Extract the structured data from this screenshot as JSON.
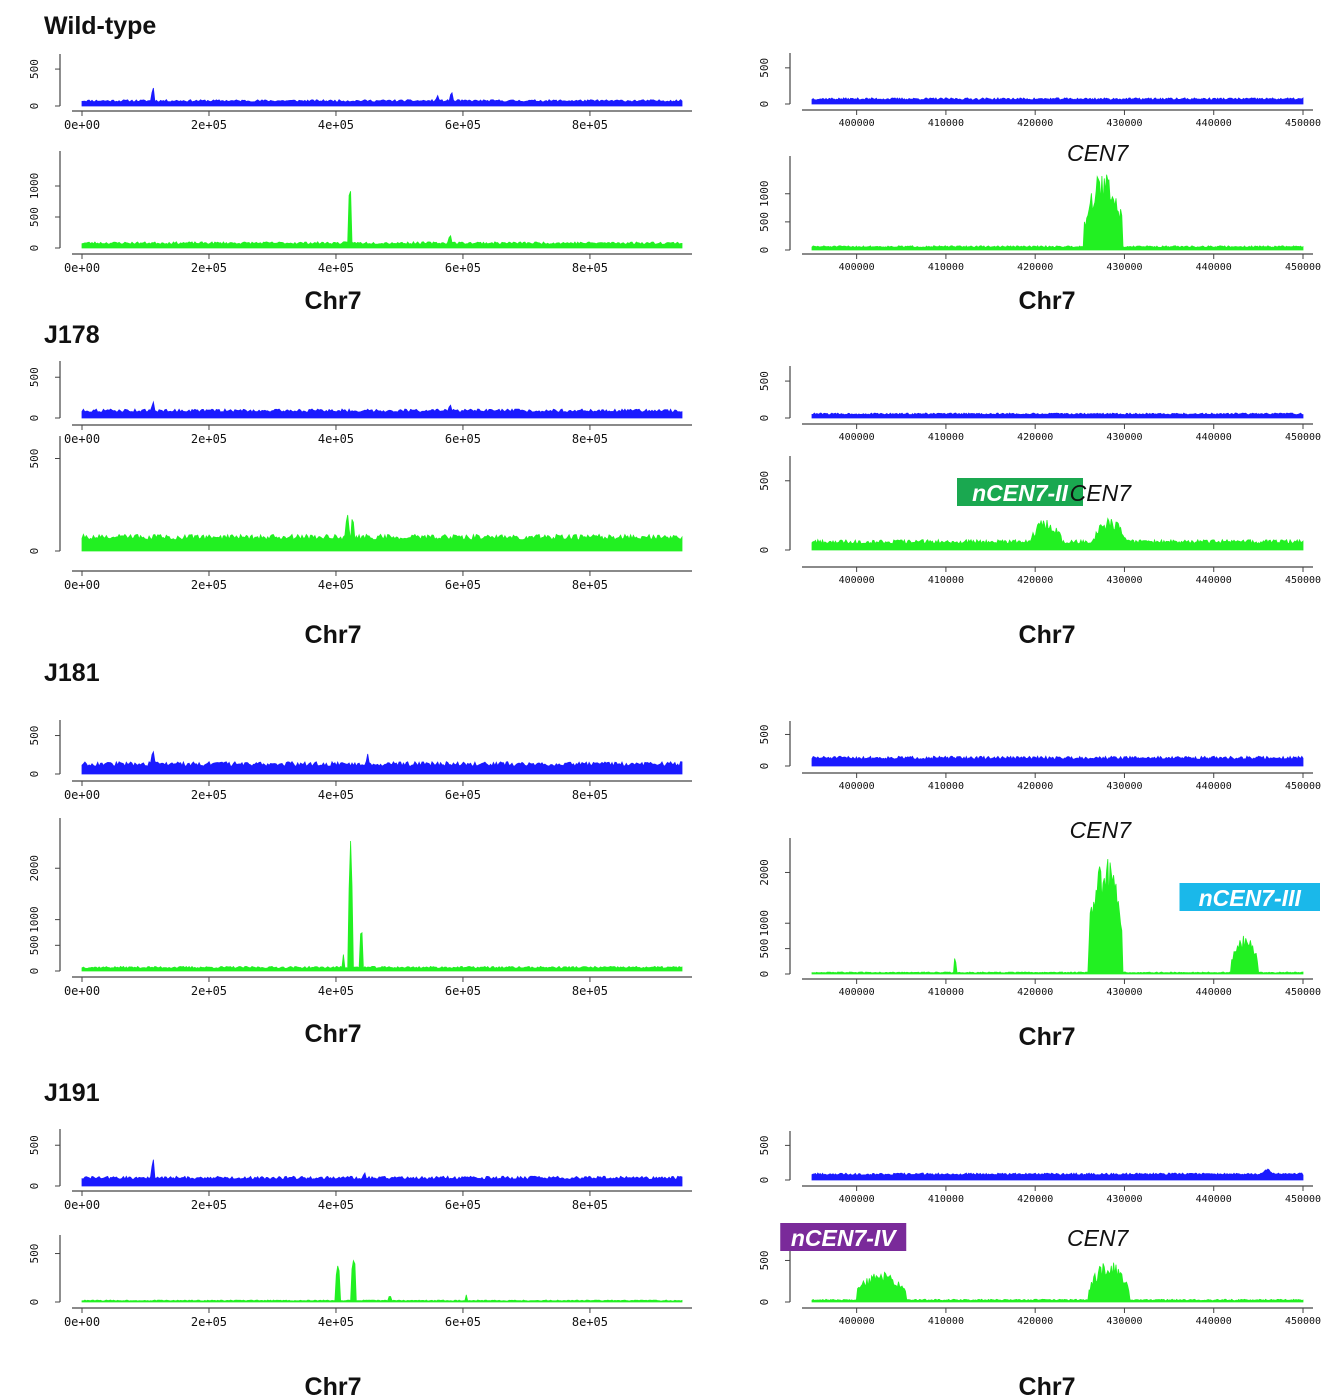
{
  "figure": {
    "colors": {
      "input": "#1a1aff",
      "chip": "#22f022",
      "axis": "#444444",
      "text": "#111111"
    }
  },
  "chart_data": [
    {
      "strain": "Wild-type",
      "xlabel_left": "Chr7",
      "xlabel_right": "Chr7",
      "full": {
        "x_ticks": [
          "0e+00",
          "2e+05",
          "4e+05",
          "6e+05",
          "8e+05"
        ],
        "top": {
          "type": "area",
          "color": "#1a1aff",
          "ylim": [
            0,
            650
          ],
          "y_ticks": [
            "0",
            "500"
          ],
          "baseline": 70,
          "noise": 15,
          "peaks": [
            {
              "x": 112000,
              "y": 290
            },
            {
              "x": 560000,
              "y": 170
            },
            {
              "x": 582000,
              "y": 220
            }
          ]
        },
        "bottom": {
          "type": "area",
          "color": "#22f022",
          "ylim": [
            0,
            1500
          ],
          "y_ticks": [
            "0",
            "500",
            "1000"
          ],
          "baseline": 80,
          "noise": 20,
          "peaks": [
            {
              "x": 422000,
              "y": 1450,
              "w": 1500
            },
            {
              "x": 580000,
              "y": 250
            }
          ]
        }
      },
      "zoom": {
        "x_ticks": [
          "400000",
          "410000",
          "420000",
          "430000",
          "440000",
          "450000"
        ],
        "top": {
          "type": "area",
          "color": "#1a1aff",
          "ylim": [
            0,
            650
          ],
          "y_ticks": [
            "0",
            "500"
          ],
          "baseline": 70,
          "noise": 15,
          "peaks": []
        },
        "bottom": {
          "type": "area",
          "color": "#22f022",
          "ylim": [
            0,
            1600
          ],
          "y_ticks": [
            "0",
            "500",
            "1000"
          ],
          "baseline": 60,
          "noise": 15,
          "regions": [
            {
              "from": 425500,
              "to": 429800,
              "y": 1400
            }
          ]
        },
        "labels": [
          {
            "text": "CEN7",
            "x": 427000
          }
        ]
      }
    },
    {
      "strain": "J178",
      "xlabel_left": "Chr7",
      "xlabel_right": "Chr7",
      "full": {
        "x_ticks": [
          "0e+00",
          "2e+05",
          "4e+05",
          "6e+05",
          "8e+05"
        ],
        "top": {
          "type": "area",
          "color": "#1a1aff",
          "ylim": [
            0,
            650
          ],
          "y_ticks": [
            "0",
            "500"
          ],
          "baseline": 90,
          "noise": 20,
          "peaks": [
            {
              "x": 112000,
              "y": 220
            },
            {
              "x": 580000,
              "y": 190
            }
          ]
        },
        "bottom": {
          "type": "area",
          "color": "#22f022",
          "ylim": [
            0,
            600
          ],
          "y_ticks": [
            "0",
            "500"
          ],
          "baseline": 75,
          "noise": 15,
          "peaks": [
            {
              "x": 418000,
              "y": 220,
              "w": 3000
            },
            {
              "x": 426000,
              "y": 220,
              "w": 3000
            }
          ]
        }
      },
      "zoom": {
        "x_ticks": [
          "400000",
          "410000",
          "420000",
          "430000",
          "440000",
          "450000"
        ],
        "top": {
          "type": "area",
          "color": "#1a1aff",
          "ylim": [
            0,
            650
          ],
          "y_ticks": [
            "0",
            "500"
          ],
          "baseline": 55,
          "noise": 12,
          "peaks": []
        },
        "bottom": {
          "type": "area",
          "color": "#22f022",
          "ylim": [
            0,
            650
          ],
          "y_ticks": [
            "0",
            "500"
          ],
          "baseline": 60,
          "noise": 15,
          "regions": [
            {
              "from": 419500,
              "to": 423000,
              "y": 230
            },
            {
              "from": 426500,
              "to": 430200,
              "y": 230
            }
          ]
        },
        "labels": [
          {
            "text": "nCEN7-II",
            "x": 418300,
            "badge": "#1aa850"
          },
          {
            "text": "CEN7",
            "x": 427300
          }
        ]
      }
    },
    {
      "strain": "J181",
      "xlabel_left": "Chr7",
      "xlabel_right": "Chr7",
      "full": {
        "x_ticks": [
          "0e+00",
          "2e+05",
          "4e+05",
          "6e+05",
          "8e+05"
        ],
        "top": {
          "type": "area",
          "color": "#1a1aff",
          "ylim": [
            0,
            650
          ],
          "y_ticks": [
            "0",
            "500"
          ],
          "baseline": 130,
          "noise": 30,
          "peaks": [
            {
              "x": 112000,
              "y": 360
            },
            {
              "x": 450000,
              "y": 280
            }
          ]
        },
        "bottom": {
          "type": "area",
          "color": "#22f022",
          "ylim": [
            0,
            2900
          ],
          "y_ticks": [
            "0",
            "500",
            "1000",
            "2000"
          ],
          "baseline": 70,
          "noise": 20,
          "peaks": [
            {
              "x": 411000,
              "y": 450,
              "w": 1200
            },
            {
              "x": 423000,
              "y": 2850,
              "w": 2500
            },
            {
              "x": 440000,
              "y": 950,
              "w": 2500
            }
          ]
        }
      },
      "zoom": {
        "x_ticks": [
          "400000",
          "410000",
          "420000",
          "430000",
          "440000",
          "450000"
        ],
        "top": {
          "type": "area",
          "color": "#1a1aff",
          "ylim": [
            0,
            650
          ],
          "y_ticks": [
            "0",
            "500"
          ],
          "baseline": 130,
          "noise": 25,
          "peaks": []
        },
        "bottom": {
          "type": "area",
          "color": "#22f022",
          "ylim": [
            0,
            2600
          ],
          "y_ticks": [
            "0",
            "500",
            "1000",
            "2000"
          ],
          "baseline": 30,
          "noise": 10,
          "peaks": [
            {
              "x": 411000,
              "y": 350,
              "w": 150
            }
          ],
          "regions": [
            {
              "from": 426000,
              "to": 429800,
              "y": 2400
            },
            {
              "from": 442000,
              "to": 445000,
              "y": 800
            }
          ]
        },
        "labels": [
          {
            "text": "CEN7",
            "x": 427300
          },
          {
            "text": "nCEN7-III",
            "x": 446000,
            "badge": "#1ab8ea"
          }
        ]
      }
    },
    {
      "strain": "J191",
      "xlabel_left": "Chr7",
      "xlabel_right": "Chr7",
      "full": {
        "x_ticks": [
          "0e+00",
          "2e+05",
          "4e+05",
          "6e+05",
          "8e+05"
        ],
        "top": {
          "type": "area",
          "color": "#1a1aff",
          "ylim": [
            0,
            650
          ],
          "y_ticks": [
            "0",
            "500"
          ],
          "baseline": 100,
          "noise": 20,
          "peaks": [
            {
              "x": 112000,
              "y": 380
            },
            {
              "x": 445000,
              "y": 190
            }
          ]
        },
        "bottom": {
          "type": "area",
          "color": "#22f022",
          "ylim": [
            0,
            650
          ],
          "y_ticks": [
            "0",
            "500"
          ],
          "baseline": 15,
          "noise": 5,
          "peaks": [
            {
              "x": 403000,
              "y": 420,
              "w": 4000
            },
            {
              "x": 428000,
              "y": 520,
              "w": 3500
            },
            {
              "x": 485000,
              "y": 90,
              "w": 1500
            },
            {
              "x": 606000,
              "y": 100,
              "w": 1500
            }
          ]
        }
      },
      "zoom": {
        "x_ticks": [
          "400000",
          "410000",
          "420000",
          "430000",
          "440000",
          "450000"
        ],
        "top": {
          "type": "area",
          "color": "#1a1aff",
          "ylim": [
            0,
            650
          ],
          "y_ticks": [
            "0",
            "500"
          ],
          "baseline": 85,
          "noise": 15,
          "peaks": [
            {
              "x": 446000,
              "y": 170,
              "w": 600
            }
          ]
        },
        "bottom": {
          "type": "area",
          "color": "#22f022",
          "ylim": [
            0,
            650
          ],
          "y_ticks": [
            "0",
            "500"
          ],
          "baseline": 25,
          "noise": 8,
          "regions": [
            {
              "from": 400000,
              "to": 405500,
              "y": 370
            },
            {
              "from": 426000,
              "to": 430500,
              "y": 490
            }
          ]
        },
        "labels": [
          {
            "text": "nCEN7-IV",
            "x": 398500,
            "badge": "#7a2a9a"
          },
          {
            "text": "CEN7",
            "x": 427000
          }
        ]
      }
    }
  ]
}
